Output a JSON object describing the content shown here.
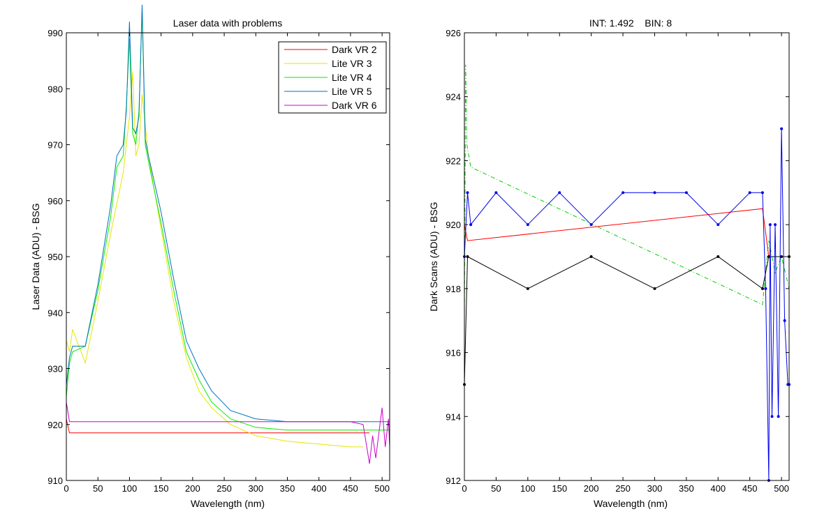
{
  "figure": {
    "background": "#ffffff"
  },
  "chart_data": [
    {
      "type": "line",
      "title": "Laser data with problems",
      "xlabel": "Wavelength (nm)",
      "ylabel": "Laser Data (ADU) - BSG",
      "xlim": [
        0,
        512
      ],
      "ylim": [
        910,
        990
      ],
      "xticks": [
        0,
        50,
        100,
        150,
        200,
        250,
        300,
        350,
        400,
        450,
        500
      ],
      "yticks": [
        910,
        920,
        930,
        940,
        950,
        960,
        970,
        980,
        990
      ],
      "grid": false,
      "legend_position": "top-right",
      "series": [
        {
          "name": "Dark VR 2",
          "color": "#ff0000",
          "x": [
            0,
            5,
            50,
            100,
            150,
            200,
            250,
            300,
            350,
            400,
            450,
            480
          ],
          "y": [
            921,
            918.5,
            918.5,
            918.5,
            918.5,
            918.5,
            918.5,
            918.5,
            918.5,
            918.5,
            918.5,
            918.5
          ]
        },
        {
          "name": "Lite VR 3",
          "color": "#e6e600",
          "x": [
            0,
            5,
            10,
            30,
            50,
            70,
            90,
            100,
            105,
            110,
            115,
            120,
            130,
            150,
            170,
            190,
            210,
            230,
            260,
            300,
            350,
            400,
            450,
            470
          ],
          "y": [
            935,
            933,
            937,
            931,
            942,
            954,
            965,
            975,
            983,
            968,
            970,
            979,
            968,
            955,
            942,
            932,
            926,
            923,
            920,
            918,
            917,
            916.5,
            916,
            916
          ]
        },
        {
          "name": "Lite VR 4",
          "color": "#00ee00",
          "x": [
            0,
            5,
            10,
            30,
            50,
            70,
            80,
            90,
            95,
            100,
            105,
            110,
            115,
            120,
            125,
            130,
            150,
            170,
            190,
            210,
            230,
            260,
            300,
            350,
            400,
            450,
            500,
            512
          ],
          "y": [
            925,
            931,
            933,
            934,
            944,
            957,
            966,
            968,
            977,
            989,
            972,
            970,
            976,
            994,
            970,
            967,
            956,
            944,
            933,
            928,
            924,
            921,
            919.5,
            919,
            919,
            919,
            919,
            919
          ]
        },
        {
          "name": "Lite VR 5",
          "color": "#0072bd",
          "x": [
            0,
            5,
            10,
            30,
            50,
            70,
            80,
            90,
            95,
            100,
            105,
            110,
            115,
            120,
            125,
            130,
            150,
            170,
            190,
            210,
            230,
            260,
            300,
            350,
            400,
            450,
            500,
            512
          ],
          "y": [
            927,
            932,
            934,
            934,
            945,
            959,
            968,
            970,
            976,
            992,
            973,
            972,
            975,
            995,
            971,
            968,
            958,
            946,
            935,
            930,
            926,
            922.5,
            921,
            920.5,
            920.5,
            920.5,
            920.5,
            920.5
          ]
        },
        {
          "name": "Dark VR 6",
          "color": "#cc00cc",
          "x": [
            0,
            5,
            50,
            100,
            150,
            200,
            250,
            300,
            350,
            400,
            450,
            470,
            480,
            485,
            490,
            500,
            505,
            510,
            512
          ],
          "y": [
            924,
            920.5,
            920.5,
            920.5,
            920.5,
            920.5,
            920.5,
            920.5,
            920.5,
            920.5,
            920.5,
            920,
            913,
            918,
            914,
            923,
            916,
            921,
            916
          ]
        }
      ]
    },
    {
      "type": "line",
      "title": "INT: 1.492    BIN: 8",
      "xlabel": "Wavelength (nm)",
      "ylabel": "Dark Scans (ADU) - BSG",
      "xlim": [
        0,
        512
      ],
      "ylim": [
        912,
        926
      ],
      "xticks": [
        0,
        50,
        100,
        150,
        200,
        250,
        300,
        350,
        400,
        450,
        500
      ],
      "yticks": [
        912,
        914,
        916,
        918,
        920,
        922,
        924,
        926
      ],
      "grid": false,
      "series": [
        {
          "color": "#00cc00",
          "style": "dash-dot",
          "x": [
            0,
            2,
            4,
            10,
            470,
            480,
            490,
            500,
            512
          ],
          "y": [
            917,
            925,
            922.5,
            921.8,
            917.5,
            919.5,
            918.5,
            919,
            918
          ]
        },
        {
          "color": "#ff0000",
          "x": [
            0,
            5,
            470,
            480,
            500,
            512
          ],
          "y": [
            920,
            919.5,
            920.5,
            919,
            919,
            919
          ]
        },
        {
          "color": "#000000",
          "marker": "dot",
          "x": [
            0,
            5,
            100,
            200,
            300,
            400,
            470,
            480,
            500,
            512
          ],
          "y": [
            915,
            919,
            918,
            919,
            918,
            919,
            918,
            919,
            919,
            919
          ]
        },
        {
          "color": "#0000ee",
          "marker": "dot",
          "x": [
            0,
            5,
            10,
            50,
            100,
            150,
            200,
            250,
            300,
            350,
            400,
            450,
            470,
            475,
            480,
            482,
            485,
            490,
            495,
            500,
            505,
            510,
            512
          ],
          "y": [
            919,
            921,
            920,
            921,
            920,
            921,
            920,
            921,
            921,
            921,
            920,
            921,
            921,
            918,
            912,
            920,
            914,
            920,
            914,
            923,
            917,
            915,
            915
          ]
        }
      ]
    }
  ]
}
